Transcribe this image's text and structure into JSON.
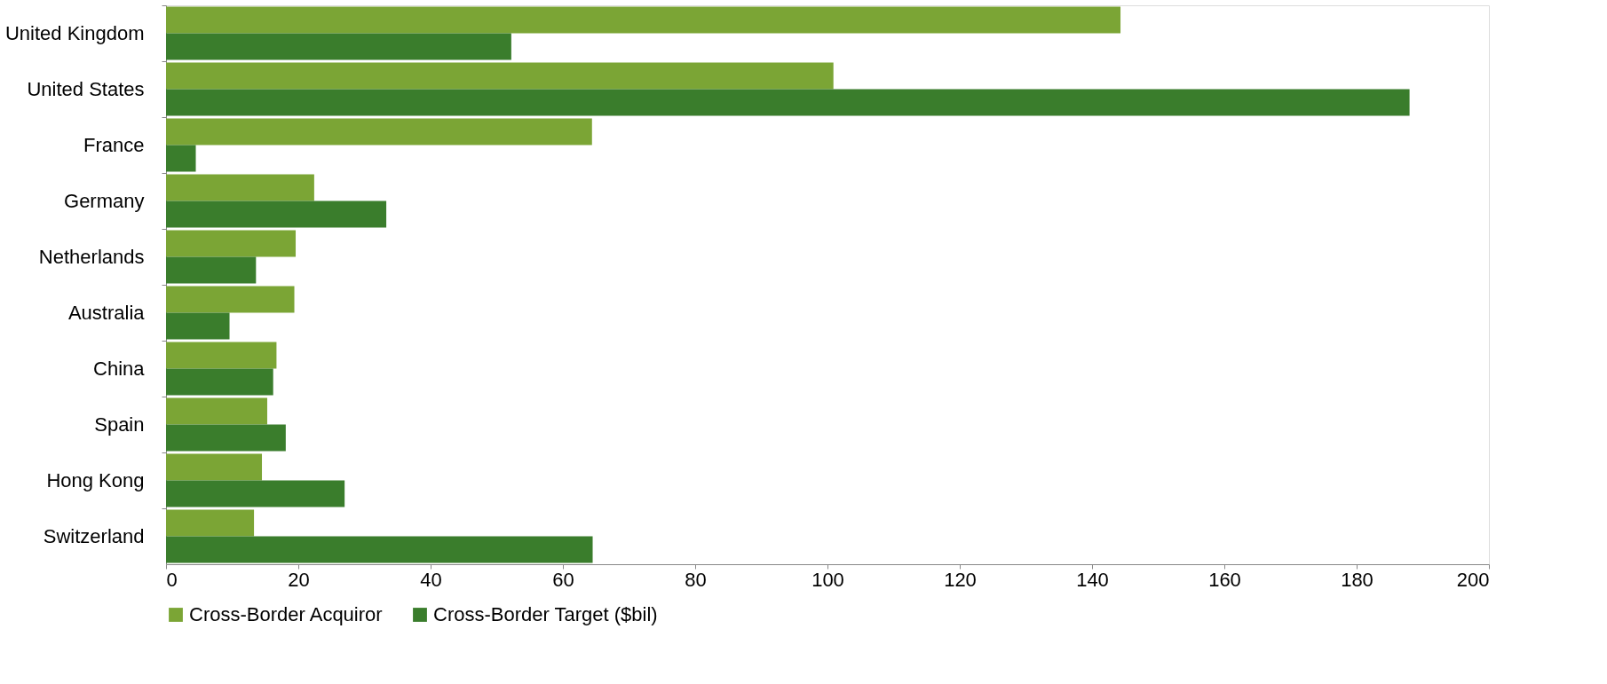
{
  "chart_data": {
    "type": "bar",
    "orientation": "horizontal",
    "categories": [
      "United Kingdom",
      "United States",
      "France",
      "Germany",
      "Netherlands",
      "Australia",
      "China",
      "Spain",
      "Hong Kong",
      "Switzerland"
    ],
    "series": [
      {
        "name": "Cross-Border Acquiror",
        "color": "#7ba535",
        "values": [
          144.3,
          100.9,
          64.4,
          22.4,
          19.6,
          19.4,
          16.7,
          15.3,
          14.5,
          13.3
        ]
      },
      {
        "name": "Cross-Border Target ($bil)",
        "color": "#3a7d2c",
        "values": [
          52.2,
          188.0,
          4.5,
          33.3,
          13.6,
          9.6,
          16.2,
          18.1,
          27.0,
          64.5
        ]
      }
    ],
    "xlim": [
      0,
      200
    ],
    "xticks": [
      0,
      20,
      40,
      60,
      80,
      100,
      120,
      140,
      160,
      180,
      200
    ],
    "grid": false,
    "legend": "bottom"
  }
}
